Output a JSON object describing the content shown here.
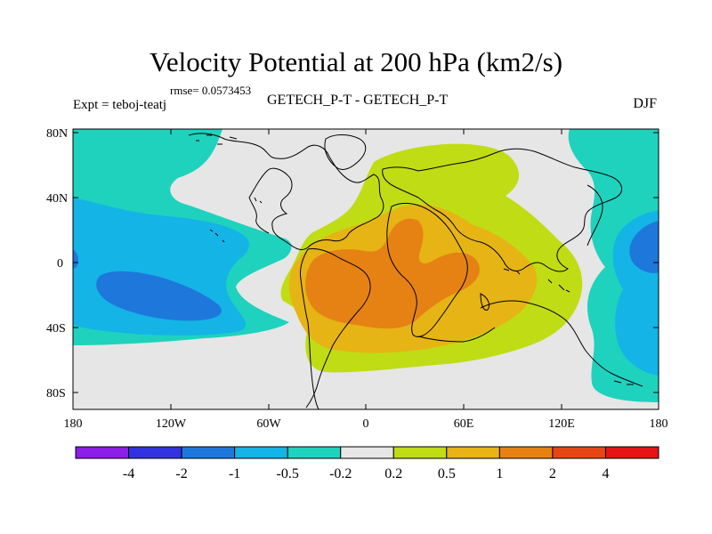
{
  "title": "Velocity Potential at 200 hPa (km2/s)",
  "rmse_label": "rmse= 0.0573453",
  "expt_label": "Expt = teboj-teatj",
  "subtitle": "GETECH_P-T - GETECH_P-T",
  "season": "DJF",
  "y_ticks": [
    "80N",
    "40N",
    "0",
    "40S",
    "80S"
  ],
  "x_ticks": [
    "180",
    "120W",
    "60W",
    "0",
    "60E",
    "120E",
    "180"
  ],
  "colorbar": {
    "colors": [
      "#8c1ee6",
      "#3232e0",
      "#1e78dc",
      "#14b4e6",
      "#1ed2be",
      "#e6e6e6",
      "#c0dc14",
      "#e6b414",
      "#e68214",
      "#e64614",
      "#e61414"
    ],
    "labels": [
      "-4",
      "-2",
      "-1",
      "-0.5",
      "-0.2",
      "0.2",
      "0.5",
      "1",
      "2",
      "4"
    ]
  },
  "map_colors": {
    "ocean": "#e6e6e6",
    "neg_weak": "#1ed2be",
    "neg_mid": "#14b4e6",
    "neg_strong": "#1e78dc",
    "pos_weak": "#c0dc14",
    "pos_mid": "#e6b414",
    "pos_strong": "#e68214"
  }
}
